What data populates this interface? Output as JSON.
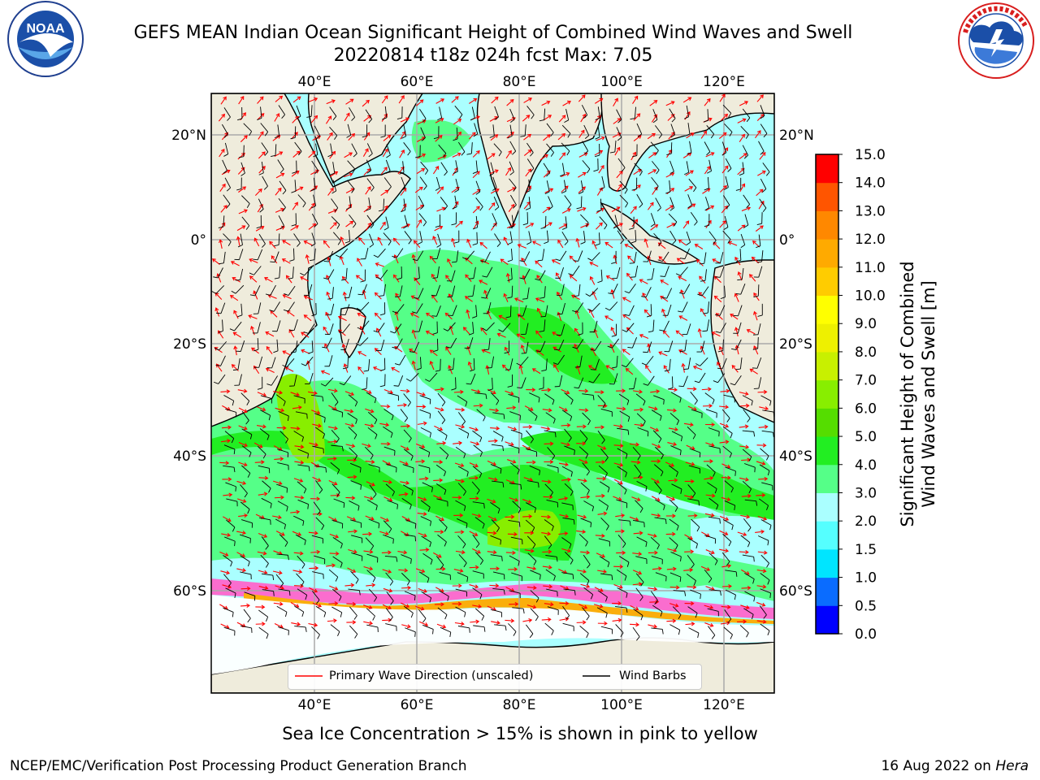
{
  "header": {
    "title_line1": "GEFS MEAN Indian Ocean Significant Height of Combined Wind Waves and Swell",
    "title_line2": "20220814 t18z 024h fcst   Max: 7.05"
  },
  "logos": {
    "left": {
      "icon": "noaa-logo",
      "text": "NOAA",
      "ring_text": "NATIONAL OCEANIC AND ATMOSPHERIC ADMINISTRATION · U.S. DEPARTMENT OF COMMERCE"
    },
    "right": {
      "icon": "nws-logo",
      "ring_text": "NATIONAL WEATHER SERVICE"
    }
  },
  "map": {
    "lon_labels_top": [
      "40°E",
      "60°E",
      "80°E",
      "100°E",
      "120°E"
    ],
    "lon_labels_bottom": [
      "40°E",
      "60°E",
      "80°E",
      "100°E",
      "120°E"
    ],
    "lat_labels_left": [
      "20°N",
      "0°",
      "20°S",
      "40°S",
      "60°S"
    ],
    "lat_labels_right": [
      "20°N",
      "0°",
      "20°S",
      "40°S",
      "60°S"
    ],
    "legend": {
      "wave_direction": "Primary Wave Direction (unscaled)",
      "wind_barbs": "Wind Barbs"
    },
    "colors": {
      "land": "#efecdc",
      "wave_arrow": "#ff0000",
      "wind_barb": "#000000",
      "sea_ice": "#ff66cc"
    }
  },
  "colorbar": {
    "label_line1": "Significant Height of Combined",
    "label_line2": "Wind Waves and Swell [m]",
    "ticks": [
      "0.0",
      "0.5",
      "1.0",
      "1.5",
      "2.0",
      "3.0",
      "4.0",
      "5.0",
      "6.0",
      "7.0",
      "8.0",
      "9.0",
      "10.0",
      "11.0",
      "12.0",
      "13.0",
      "14.0",
      "15.0"
    ],
    "colors": [
      "#0000ff",
      "#0a6cff",
      "#00e5ff",
      "#55ffff",
      "#aaffff",
      "#55ff88",
      "#22ee22",
      "#55dd00",
      "#88ee00",
      "#c8f000",
      "#eef000",
      "#ffff00",
      "#ffcc00",
      "#ffaa00",
      "#ff8800",
      "#ff5500",
      "#ff0000"
    ]
  },
  "footer": {
    "caption": "Sea Ice Concentration > 15% is shown in pink to yellow",
    "left": "NCEP/EMC/Verification Post Processing Product Generation Branch",
    "right_date": "16 Aug 2022 on ",
    "right_host": "Hera"
  }
}
